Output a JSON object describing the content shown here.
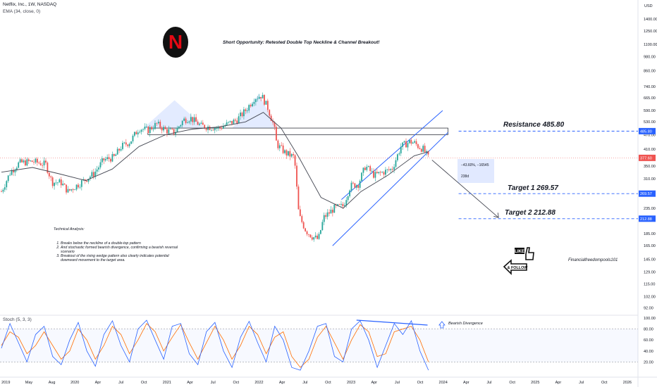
{
  "header": {
    "symbol": "Netflix, Inc., 1W, NASDAQ",
    "ema": "EMA (34, close, 0)",
    "currency": "USD"
  },
  "headline": "Short Opportunity: Retested Double Top Neckline & Channel Breakout!",
  "logo_letter": "N",
  "analysis": {
    "title": "Technical Analysis:",
    "points": [
      "Breaks below the neckline of a double-top pattern",
      "And stochastic formed bearish divergence, confirming a bearish reversal scenario",
      "Breakout of the rising wedge pattern also clearly indicates potential downward movement to the target area."
    ]
  },
  "levels": {
    "resistance_label": "Resistance 485.80",
    "target1_label": "Target 1  269.57",
    "target2_label": "Target 2  212.88"
  },
  "measure": {
    "change": "−43.60%, −16545",
    "bars": "238d"
  },
  "like_text": "LIKE",
  "follow_text": "& FOLLOW",
  "handle": "Financialfreedompools101",
  "stoch": {
    "label": "Stoch (5, 3, 3)",
    "divergence_label": "Bearish Divergence",
    "axis": [
      "100.00",
      "80.00",
      "60.00",
      "40.00",
      "20.00"
    ]
  },
  "colors": {
    "up": "#26a69a",
    "down": "#ef5350",
    "ema": "#434651",
    "channel": "#2962ff",
    "k_line": "#2962ff",
    "d_line": "#ff6d00",
    "price_tag": "#ef5350",
    "level_tag": "#2962ff"
  },
  "chart_data": {
    "type": "candlestick",
    "scale": "log",
    "ylim": [
      88,
      1650
    ],
    "y_ticks": [
      1400,
      1250,
      1100,
      980,
      860,
      740,
      665,
      590,
      530,
      470,
      410,
      350,
      310,
      270,
      235,
      210,
      185,
      165,
      145,
      129,
      115,
      102,
      92
    ],
    "x_ticks": [
      "2019",
      "May",
      "Aug",
      "2020",
      "Apr",
      "Jul",
      "Oct",
      "2021",
      "Apr",
      "Jul",
      "Oct",
      "2022",
      "Apr",
      "Jul",
      "Oct",
      "2023",
      "Apr",
      "Jul",
      "Oct",
      "2024",
      "Apr",
      "Jul",
      "Oct",
      "2025",
      "Apr",
      "Jul",
      "Oct",
      "2026"
    ],
    "price_tags": [
      {
        "label": "485.80",
        "value": 485.8,
        "kind": "level"
      },
      {
        "label": "377.60",
        "value": 377.6,
        "kind": "price"
      },
      {
        "label": "269.57",
        "value": 269.57,
        "kind": "level"
      },
      {
        "label": "212.88",
        "value": 212.88,
        "kind": "level"
      }
    ],
    "resistance": 485.8,
    "target1": 269.57,
    "target2": 212.88,
    "last_close": 377.6,
    "close_path": [
      {
        "t": 2018.95,
        "v": 275
      },
      {
        "t": 2019.05,
        "v": 330
      },
      {
        "t": 2019.15,
        "v": 360
      },
      {
        "t": 2019.3,
        "v": 365
      },
      {
        "t": 2019.45,
        "v": 355
      },
      {
        "t": 2019.52,
        "v": 300
      },
      {
        "t": 2019.62,
        "v": 300
      },
      {
        "t": 2019.7,
        "v": 275
      },
      {
        "t": 2019.85,
        "v": 300
      },
      {
        "t": 2019.99,
        "v": 325
      },
      {
        "t": 2020.1,
        "v": 370
      },
      {
        "t": 2020.22,
        "v": 380
      },
      {
        "t": 2020.3,
        "v": 420
      },
      {
        "t": 2020.4,
        "v": 440
      },
      {
        "t": 2020.5,
        "v": 500
      },
      {
        "t": 2020.6,
        "v": 490
      },
      {
        "t": 2020.7,
        "v": 520
      },
      {
        "t": 2020.8,
        "v": 490
      },
      {
        "t": 2020.9,
        "v": 480
      },
      {
        "t": 2021.0,
        "v": 540
      },
      {
        "t": 2021.08,
        "v": 550
      },
      {
        "t": 2021.2,
        "v": 510
      },
      {
        "t": 2021.3,
        "v": 505
      },
      {
        "t": 2021.4,
        "v": 500
      },
      {
        "t": 2021.5,
        "v": 520
      },
      {
        "t": 2021.6,
        "v": 540
      },
      {
        "t": 2021.7,
        "v": 590
      },
      {
        "t": 2021.8,
        "v": 665
      },
      {
        "t": 2021.88,
        "v": 680
      },
      {
        "t": 2021.95,
        "v": 605
      },
      {
        "t": 2022.02,
        "v": 510
      },
      {
        "t": 2022.05,
        "v": 430
      },
      {
        "t": 2022.15,
        "v": 395
      },
      {
        "t": 2022.25,
        "v": 380
      },
      {
        "t": 2022.3,
        "v": 220
      },
      {
        "t": 2022.38,
        "v": 190
      },
      {
        "t": 2022.45,
        "v": 180
      },
      {
        "t": 2022.52,
        "v": 175
      },
      {
        "t": 2022.58,
        "v": 215
      },
      {
        "t": 2022.7,
        "v": 235
      },
      {
        "t": 2022.8,
        "v": 240
      },
      {
        "t": 2022.88,
        "v": 290
      },
      {
        "t": 2022.97,
        "v": 295
      },
      {
        "t": 2023.05,
        "v": 350
      },
      {
        "t": 2023.15,
        "v": 320
      },
      {
        "t": 2023.25,
        "v": 330
      },
      {
        "t": 2023.35,
        "v": 340
      },
      {
        "t": 2023.45,
        "v": 420
      },
      {
        "t": 2023.55,
        "v": 440
      },
      {
        "t": 2023.6,
        "v": 435
      },
      {
        "t": 2023.65,
        "v": 420
      },
      {
        "t": 2023.7,
        "v": 410
      },
      {
        "t": 2023.76,
        "v": 377.6
      }
    ],
    "ema34_path": [
      {
        "t": 2018.95,
        "v": 330
      },
      {
        "t": 2019.3,
        "v": 345
      },
      {
        "t": 2019.6,
        "v": 325
      },
      {
        "t": 2019.9,
        "v": 305
      },
      {
        "t": 2020.2,
        "v": 340
      },
      {
        "t": 2020.5,
        "v": 420
      },
      {
        "t": 2020.8,
        "v": 470
      },
      {
        "t": 2021.1,
        "v": 495
      },
      {
        "t": 2021.4,
        "v": 505
      },
      {
        "t": 2021.7,
        "v": 530
      },
      {
        "t": 2021.9,
        "v": 580
      },
      {
        "t": 2022.1,
        "v": 500
      },
      {
        "t": 2022.3,
        "v": 380
      },
      {
        "t": 2022.55,
        "v": 260
      },
      {
        "t": 2022.8,
        "v": 235
      },
      {
        "t": 2023.0,
        "v": 275
      },
      {
        "t": 2023.3,
        "v": 320
      },
      {
        "t": 2023.6,
        "v": 385
      },
      {
        "t": 2023.76,
        "v": 400
      }
    ],
    "stochastic": {
      "k": [
        45,
        90,
        55,
        20,
        70,
        85,
        30,
        15,
        60,
        92,
        40,
        12,
        70,
        95,
        50,
        20,
        80,
        96,
        60,
        25,
        85,
        90,
        35,
        15,
        75,
        92,
        40,
        10,
        65,
        94,
        55,
        20,
        85,
        60,
        10,
        5,
        40,
        85,
        90,
        30,
        20,
        80,
        95,
        60,
        10,
        50,
        90,
        70,
        95,
        40,
        5
      ],
      "d": [
        50,
        75,
        65,
        35,
        50,
        75,
        50,
        25,
        40,
        80,
        60,
        25,
        50,
        85,
        70,
        35,
        60,
        90,
        75,
        40,
        65,
        88,
        55,
        25,
        55,
        85,
        60,
        25,
        50,
        85,
        70,
        35,
        65,
        75,
        30,
        10,
        25,
        65,
        85,
        55,
        25,
        60,
        88,
        75,
        30,
        35,
        75,
        80,
        85,
        60,
        20
      ]
    }
  }
}
